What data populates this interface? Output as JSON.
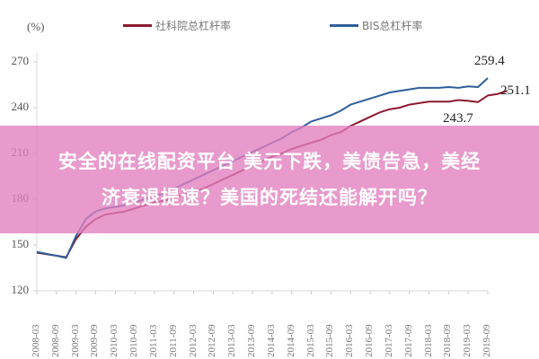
{
  "chart_data": {
    "type": "line",
    "title": "",
    "ylabel": "(%)",
    "xlabel": "",
    "ylim": [
      120,
      270
    ],
    "yticks": [
      120,
      150,
      180,
      210,
      240,
      270
    ],
    "xticks": [
      "2008-03",
      "2008-09",
      "2009-03",
      "2009-09",
      "2010-03",
      "2010-09",
      "2011-03",
      "2011-09",
      "2012-03",
      "2012-09",
      "2013-03",
      "2013-09",
      "2014-03",
      "2014-09",
      "2015-03",
      "2015-09",
      "2016-03",
      "2016-09",
      "2017-03",
      "2017-09",
      "2018-03",
      "2018-09",
      "2019-03",
      "2019-09"
    ],
    "grid": false,
    "legend_position": "top",
    "series": [
      {
        "name": "社科院总杠杆率",
        "color": "#8b1a2e",
        "values": [
          145,
          144,
          143,
          142,
          154,
          162,
          167,
          170,
          171,
          172,
          174,
          176,
          178,
          179,
          181,
          183,
          185,
          187,
          190,
          193,
          196,
          199,
          202,
          205,
          208,
          210,
          213,
          215,
          217,
          219,
          222,
          224,
          228,
          231,
          234,
          237,
          239,
          240,
          242,
          243,
          244,
          244,
          244,
          245,
          244.5,
          243.7,
          248,
          249,
          251.1
        ]
      },
      {
        "name": "BIS总杠杆率",
        "color": "#2e5f9a",
        "values": [
          145.5,
          144.2,
          143,
          141.5,
          156,
          167,
          172,
          174,
          175,
          176,
          178,
          180,
          182,
          184,
          187,
          190,
          193,
          196,
          199,
          202,
          205,
          208,
          211,
          214,
          217,
          220,
          224,
          227,
          231,
          233,
          235,
          238,
          242,
          244,
          246,
          248,
          250,
          251,
          252,
          253,
          253,
          253,
          253.5,
          253,
          254,
          253.5,
          259.4
        ]
      }
    ],
    "annotations": [
      {
        "text": "259.4",
        "series": "BIS总杠杆率"
      },
      {
        "text": "251.1",
        "series": "社科院总杠杆率"
      },
      {
        "text": "243.7",
        "series": "社科院总杠杆率"
      }
    ]
  },
  "unit_label": "(%)",
  "legend": [
    {
      "label": "社科院总杠杆率",
      "color": "#8b1a2e"
    },
    {
      "label": "BIS总杠杆率",
      "color": "#2e5f9a"
    }
  ],
  "overlay": {
    "line1": "安全的在线配资平台 美元下跌，美债告急，美经",
    "line2": "济衰退提速？美国的死结还能解开吗？",
    "color": "#e17dbe"
  }
}
